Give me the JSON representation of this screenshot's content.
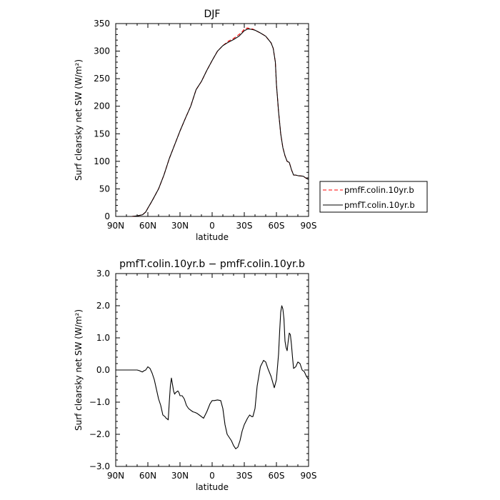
{
  "chart_data": [
    {
      "type": "line",
      "title": "DJF",
      "xlabel": "latitude",
      "ylabel": "Surf clearsky net SW (W/m²)",
      "xlim": [
        90,
        -90
      ],
      "ylim": [
        0,
        350
      ],
      "xtick_labels": [
        "90N",
        "60N",
        "30N",
        "0",
        "30S",
        "60S",
        "90S"
      ],
      "xtick_values": [
        90,
        60,
        30,
        0,
        -30,
        -60,
        -90
      ],
      "ytick_labels": [
        "0",
        "50",
        "100",
        "150",
        "200",
        "250",
        "300",
        "350"
      ],
      "ytick_values": [
        0,
        50,
        100,
        150,
        200,
        250,
        300,
        350
      ],
      "legend_position": "outside-right",
      "series": [
        {
          "name": "pmfF.colin.10yr.b",
          "color": "#ff0000",
          "dash": "dashed",
          "x": [
            75,
            70,
            65,
            62,
            60,
            57,
            55,
            50,
            45,
            40,
            35,
            30,
            25,
            20,
            15,
            10,
            5,
            0,
            -5,
            -10,
            -15,
            -20,
            -25,
            -28,
            -30,
            -33,
            -35,
            -38,
            -40,
            -45,
            -50,
            -55,
            -57,
            -59,
            -60,
            -62,
            -64,
            -66,
            -68,
            -70,
            -72,
            -74,
            -76,
            -78,
            -80,
            -85,
            -88,
            -90
          ],
          "y": [
            0,
            1,
            3,
            8,
            15,
            25,
            32,
            50,
            75,
            105,
            130,
            155,
            178,
            200,
            230,
            245,
            265,
            283,
            300,
            310,
            318,
            323,
            330,
            335,
            340,
            342,
            341,
            340,
            338,
            333,
            327,
            315,
            305,
            280,
            240,
            190,
            150,
            125,
            110,
            100,
            98,
            85,
            75,
            75,
            74,
            73,
            69,
            67
          ]
        },
        {
          "name": "pmfT.colin.10yr.b",
          "color": "#000000",
          "dash": "solid",
          "x": [
            75,
            70,
            65,
            62,
            60,
            57,
            55,
            50,
            45,
            40,
            35,
            30,
            25,
            20,
            15,
            10,
            5,
            0,
            -5,
            -10,
            -15,
            -20,
            -25,
            -28,
            -30,
            -33,
            -35,
            -38,
            -40,
            -45,
            -50,
            -55,
            -57,
            -59,
            -60,
            -62,
            -64,
            -66,
            -68,
            -70,
            -72,
            -74,
            -76,
            -78,
            -80,
            -85,
            -88,
            -90
          ],
          "y": [
            0,
            1,
            3,
            8,
            15,
            25,
            32,
            50,
            75,
            105,
            130,
            155,
            178,
            200,
            230,
            245,
            265,
            283,
            300,
            310,
            316,
            321,
            327,
            333,
            337,
            340,
            340,
            339,
            338,
            333,
            327,
            315,
            305,
            280,
            240,
            190,
            150,
            125,
            110,
            100,
            98,
            85,
            75,
            75,
            74,
            73,
            69,
            67
          ]
        }
      ]
    },
    {
      "type": "line",
      "title": "pmfT.colin.10yr.b − pmfF.colin.10yr.b",
      "xlabel": "latitude",
      "ylabel": "Surf clearsky net SW (W/m²)",
      "xlim": [
        90,
        -90
      ],
      "ylim": [
        -3.0,
        3.0
      ],
      "xtick_labels": [
        "90N",
        "60N",
        "30N",
        "0",
        "30S",
        "60S",
        "90S"
      ],
      "xtick_values": [
        90,
        60,
        30,
        0,
        -30,
        -60,
        -90
      ],
      "ytick_labels": [
        "−3.0",
        "−2.0",
        "−1.0",
        "0.0",
        "1.0",
        "2.0",
        "3.0"
      ],
      "ytick_values": [
        -3,
        -2,
        -1,
        0,
        1,
        2,
        3
      ],
      "series": [
        {
          "color": "#000000",
          "dash": "solid",
          "x": [
            90,
            80,
            75,
            70,
            68,
            66,
            65,
            64,
            62,
            60,
            58,
            56,
            54,
            52,
            50,
            48,
            46,
            44,
            43,
            42,
            41,
            40,
            39,
            38,
            37,
            36,
            35,
            34,
            33,
            32,
            31,
            30,
            28,
            26,
            24,
            22,
            20,
            18,
            16,
            14,
            12,
            10,
            8,
            5,
            2,
            0,
            -2,
            -5,
            -8,
            -10,
            -12,
            -14,
            -16,
            -18,
            -20,
            -22,
            -24,
            -26,
            -28,
            -30,
            -33,
            -35,
            -37,
            -38,
            -40,
            -42,
            -45,
            -48,
            -50,
            -52,
            -55,
            -58,
            -60,
            -62,
            -63,
            -64,
            -65,
            -66,
            -67,
            -68,
            -69,
            -70,
            -71,
            -72,
            -73,
            -74,
            -75,
            -76,
            -78,
            -80,
            -82,
            -84,
            -86,
            -88,
            -90
          ],
          "y": [
            0,
            0,
            0,
            0,
            -0.02,
            -0.05,
            -0.06,
            -0.03,
            0,
            0.1,
            0.05,
            -0.1,
            -0.3,
            -0.6,
            -0.9,
            -1.1,
            -1.4,
            -1.45,
            -1.5,
            -1.52,
            -1.55,
            -1.0,
            -0.5,
            -0.25,
            -0.45,
            -0.65,
            -0.75,
            -0.7,
            -0.68,
            -0.65,
            -0.7,
            -0.8,
            -0.8,
            -0.9,
            -1.1,
            -1.2,
            -1.25,
            -1.3,
            -1.32,
            -1.35,
            -1.4,
            -1.45,
            -1.5,
            -1.3,
            -1.05,
            -0.95,
            -0.95,
            -0.93,
            -0.95,
            -1.2,
            -1.7,
            -2.0,
            -2.1,
            -2.2,
            -2.35,
            -2.45,
            -2.4,
            -2.2,
            -1.9,
            -1.7,
            -1.5,
            -1.4,
            -1.45,
            -1.45,
            -1.2,
            -0.5,
            0.1,
            0.3,
            0.25,
            0.05,
            -0.2,
            -0.55,
            -0.3,
            0.5,
            1.2,
            1.8,
            2.0,
            1.9,
            1.6,
            0.9,
            0.7,
            0.6,
            0.9,
            1.15,
            1.1,
            0.8,
            0.4,
            0.05,
            0.1,
            0.25,
            0.2,
            0,
            -0.05,
            -0.2,
            -0.3
          ]
        }
      ]
    }
  ]
}
